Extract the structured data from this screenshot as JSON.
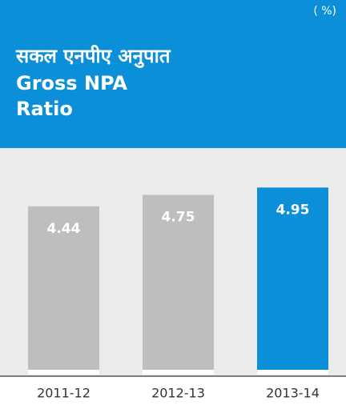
{
  "chart_data": {
    "type": "bar",
    "title": "सकल एनपीए अनुपात",
    "subtitle": "Gross NPA Ratio",
    "unit_label": "( %)",
    "categories": [
      "2011-12",
      "2012-13",
      "2013-14"
    ],
    "values": [
      4.44,
      4.75,
      4.95
    ],
    "colors": [
      "#bebebe",
      "#bebebe",
      "#0b8fd9"
    ]
  }
}
